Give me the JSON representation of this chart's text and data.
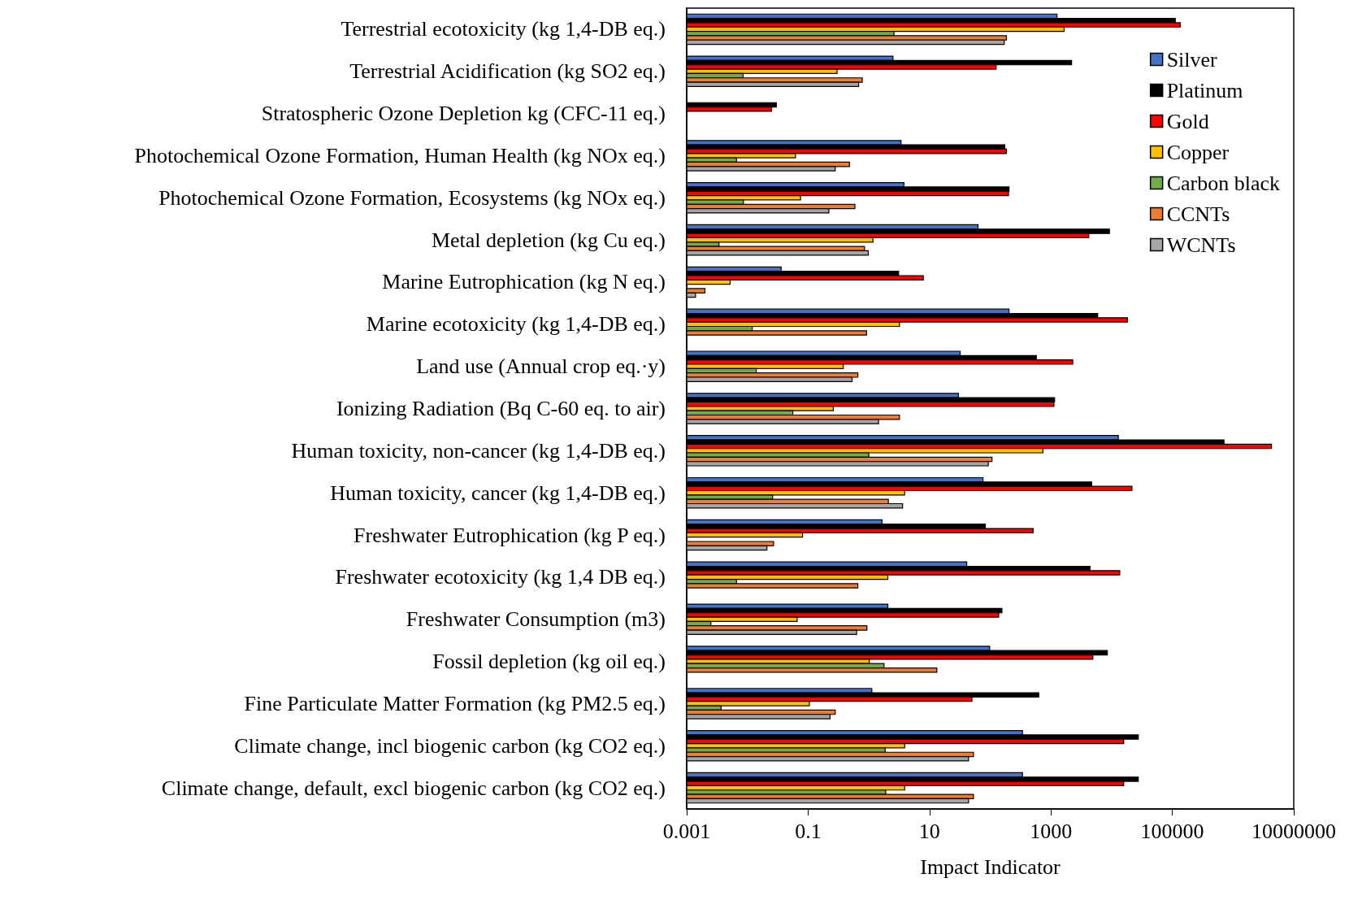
{
  "chart_data": {
    "type": "bar",
    "orientation": "horizontal",
    "xlabel": "Impact Indicator",
    "categories": [
      "Terrestrial ecotoxicity (kg 1,4-DB eq.)",
      "Terrestrial Acidification (kg SO2 eq.)",
      "Stratospheric Ozone Depletion kg (CFC-11 eq.)",
      "Photochemical Ozone Formation, Human Health (kg NOx eq.)",
      "Photochemical Ozone Formation, Ecosystems (kg NOx eq.)",
      "Metal depletion (kg Cu eq.)",
      "Marine Eutrophication (kg N eq.)",
      "Marine ecotoxicity (kg 1,4-DB eq.)",
      "Land use (Annual crop eq.·y)",
      "Ionizing Radiation (Bq C-60 eq. to air)",
      "Human toxicity, non-cancer (kg 1,4-DB eq.)",
      "Human toxicity, cancer (kg 1,4-DB eq.)",
      "Freshwater Eutrophication (kg P eq.)",
      "Freshwater ecotoxicity (kg 1,4 DB eq.)",
      "Freshwater Consumption (m3)",
      "Fossil depletion (kg oil eq.)",
      "Fine Particulate Matter Formation (kg PM2.5 eq.)",
      "Climate change, incl biogenic carbon (kg CO2 eq.)",
      "Climate change, default, excl biogenic carbon (kg CO2 eq.)"
    ],
    "series": [
      {
        "name": "Silver",
        "color": "#4472c4",
        "values": [
          1260,
          2.5,
          null,
          3.4,
          3.8,
          63,
          0.036,
          204,
          32,
          30,
          12900,
          76,
          1.65,
          41,
          2.06,
          98,
          1.12,
          340,
          340
        ]
      },
      {
        "name": "Platinum",
        "color": "#000000",
        "values": [
          112000,
          2190,
          0.03,
          174,
          204,
          9200,
          3.1,
          5900,
          575,
          1150,
          710000,
          4700,
          83,
          4400,
          156,
          8500,
          630,
          27500,
          27500
        ]
      },
      {
        "name": "Gold",
        "color": "#ff0000",
        "values": [
          135000,
          125,
          0.025,
          185,
          200,
          4200,
          7.9,
          18200,
          2290,
          1120,
          4300000,
          21600,
          510,
          13600,
          138,
          4900,
          50,
          15800,
          15800
        ]
      },
      {
        "name": "Copper",
        "color": "#ffc000",
        "values": [
          1650,
          0.3,
          null,
          0.062,
          0.075,
          1.17,
          0.0052,
          3.2,
          0.38,
          0.26,
          740,
          3.9,
          0.081,
          2.06,
          0.066,
          1.02,
          0.105,
          3.9,
          3.9
        ]
      },
      {
        "name": "Carbon black",
        "color": "#70ad47",
        "values": [
          2.6,
          0.0085,
          null,
          0.0066,
          0.0086,
          0.0034,
          null,
          0.012,
          0.014,
          0.056,
          1.0,
          0.026,
          null,
          0.0066,
          0.0025,
          1.78,
          0.0037,
          1.86,
          1.9
        ]
      },
      {
        "name": "CCNTs",
        "color": "#ed7d31",
        "values": [
          185,
          0.78,
          null,
          0.48,
          0.59,
          0.85,
          0.002,
          0.92,
          0.66,
          3.2,
          107,
          2.1,
          0.027,
          0.66,
          0.93,
          13.2,
          0.28,
          53,
          53
        ]
      },
      {
        "name": "WCNTs",
        "color": "#a5a5a5",
        "values": [
          170,
          0.68,
          null,
          0.28,
          0.22,
          0.98,
          0.0014,
          null,
          0.53,
          1.45,
          93,
          3.6,
          0.021,
          null,
          0.63,
          null,
          0.23,
          44,
          44
        ]
      }
    ],
    "log": "x",
    "xlim": [
      0.001,
      10000000
    ],
    "xticks": [
      0.001,
      0.1,
      10,
      1000,
      100000,
      10000000
    ],
    "grid": false,
    "legend": "top right"
  }
}
